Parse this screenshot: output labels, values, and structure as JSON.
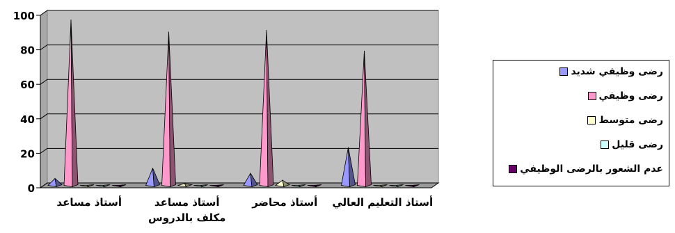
{
  "chart_data": {
    "type": "3d-cone-column",
    "categories": [
      "أستاذ مساعد",
      "أستاذ مساعد مكلف بالدروس",
      "أستاذ محاضر",
      "أستاذ التعليم العالي"
    ],
    "category_lines": [
      [
        "أستاذ مساعد"
      ],
      [
        "أستاذ مساعد",
        "مكلف بالدروس"
      ],
      [
        "أستاذ محاضر"
      ],
      [
        "أستاذ التعليم العالي"
      ]
    ],
    "series": [
      {
        "name": "رضى وظيفي شديد",
        "color": "#9999ff",
        "values": [
          4,
          10,
          7,
          22
        ]
      },
      {
        "name": "رضى وظيفي",
        "color": "#ff99cc",
        "values": [
          96,
          89,
          90,
          78
        ]
      },
      {
        "name": "رضى متوسط",
        "color": "#ffffcc",
        "values": [
          0,
          1,
          3,
          0
        ]
      },
      {
        "name": "رضى قليل",
        "color": "#ccffff",
        "values": [
          0,
          0,
          0,
          0
        ]
      },
      {
        "name": "عدم الشعور بالرضى الوظيفي",
        "color": "#660066",
        "values": [
          0,
          0,
          0,
          0
        ]
      }
    ],
    "ylim": [
      0,
      100
    ],
    "yticks": [
      0,
      20,
      40,
      60,
      80,
      100
    ],
    "grid": true,
    "wall_color": "#c0c0c0",
    "legend_position": "right"
  }
}
